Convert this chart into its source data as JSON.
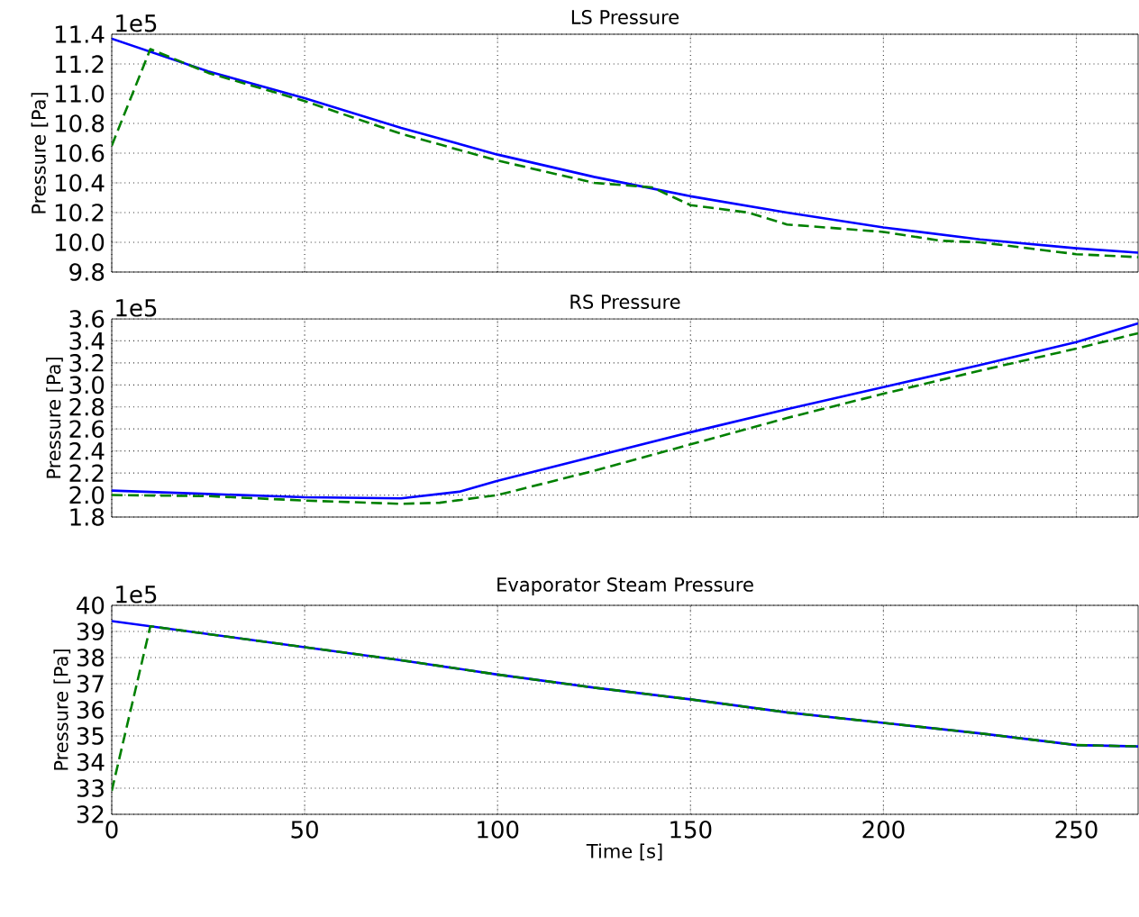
{
  "chart_data": [
    {
      "type": "line",
      "title": "LS Pressure",
      "ylabel": "Pressure [Pa]",
      "annotations": [
        "1e5"
      ],
      "xlim": [
        0,
        266
      ],
      "xticks": [
        0,
        50,
        100,
        150,
        200,
        250
      ],
      "ylim": [
        9.8,
        11.4
      ],
      "yticks": [
        9.8,
        {
          "value": 10,
          "label": "10.0"
        },
        10.2,
        10.4,
        10.6,
        10.8,
        {
          "value": 11,
          "label": "11.0"
        },
        11.2,
        11.4
      ],
      "grid": true,
      "tick_labels": "y",
      "series": [
        {
          "color": "#0000ff",
          "line_style": "solid",
          "x": [
            0,
            25,
            50,
            75,
            100,
            125,
            150,
            175,
            200,
            225,
            250,
            266
          ],
          "values": [
            11.37,
            11.15,
            10.97,
            10.77,
            10.59,
            10.44,
            10.31,
            10.2,
            10.1,
            10.02,
            9.96,
            9.93
          ]
        },
        {
          "color": "#008000",
          "line_style": "dashed",
          "x": [
            0,
            10,
            25,
            50,
            75,
            100,
            125,
            140,
            150,
            165,
            175,
            200,
            215,
            225,
            250,
            266
          ],
          "values": [
            10.65,
            11.3,
            11.14,
            10.95,
            10.73,
            10.55,
            10.4,
            10.37,
            10.25,
            10.2,
            10.12,
            10.07,
            10.01,
            10.0,
            9.92,
            9.9
          ]
        }
      ]
    },
    {
      "type": "line",
      "title": "RS Pressure",
      "ylabel": "Pressure [Pa]",
      "annotations": [
        "1e5"
      ],
      "xlim": [
        0,
        266
      ],
      "xticks": [
        0,
        50,
        100,
        150,
        200,
        250
      ],
      "ylim": [
        1.8,
        3.6
      ],
      "yticks": [
        1.8,
        {
          "value": 2,
          "label": "2.0"
        },
        2.2,
        2.4,
        2.6,
        2.8,
        {
          "value": 3,
          "label": "3.0"
        },
        3.2,
        3.4,
        3.6
      ],
      "grid": true,
      "tick_labels": "y",
      "series": [
        {
          "color": "#0000ff",
          "line_style": "solid",
          "x": [
            0,
            25,
            50,
            75,
            90,
            100,
            125,
            150,
            175,
            200,
            225,
            250,
            266
          ],
          "values": [
            2.04,
            2.01,
            1.98,
            1.97,
            2.03,
            2.13,
            2.35,
            2.57,
            2.78,
            2.98,
            3.18,
            3.39,
            3.56
          ]
        },
        {
          "color": "#008000",
          "line_style": "dashed",
          "x": [
            0,
            25,
            50,
            75,
            85,
            100,
            125,
            150,
            175,
            200,
            225,
            250,
            266
          ],
          "values": [
            2.0,
            1.99,
            1.95,
            1.92,
            1.93,
            2.0,
            2.22,
            2.46,
            2.7,
            2.92,
            3.13,
            3.33,
            3.47
          ]
        }
      ]
    },
    {
      "type": "line",
      "title": "Evaporator Steam Pressure",
      "xlabel": "Time [s]",
      "ylabel": "Pressure [Pa]",
      "annotations": [
        "1e5"
      ],
      "xlim": [
        0,
        266
      ],
      "xticks": [
        0,
        50,
        100,
        150,
        200,
        250
      ],
      "ylim": [
        32,
        40
      ],
      "yticks": [
        32,
        33,
        34,
        35,
        36,
        37,
        38,
        39,
        40
      ],
      "grid": true,
      "series": [
        {
          "color": "#0000ff",
          "line_style": "solid",
          "x": [
            0,
            25,
            50,
            75,
            100,
            125,
            150,
            175,
            200,
            225,
            250,
            266
          ],
          "values": [
            39.4,
            38.9,
            38.4,
            37.9,
            37.35,
            36.85,
            36.4,
            35.9,
            35.5,
            35.1,
            34.65,
            34.6
          ]
        },
        {
          "color": "#008000",
          "line_style": "dashed",
          "x": [
            0,
            10,
            25,
            50,
            75,
            100,
            125,
            150,
            175,
            200,
            225,
            250,
            266
          ],
          "values": [
            32.9,
            39.2,
            38.9,
            38.4,
            37.9,
            37.35,
            36.85,
            36.4,
            35.9,
            35.5,
            35.1,
            34.65,
            34.6
          ]
        }
      ]
    }
  ]
}
